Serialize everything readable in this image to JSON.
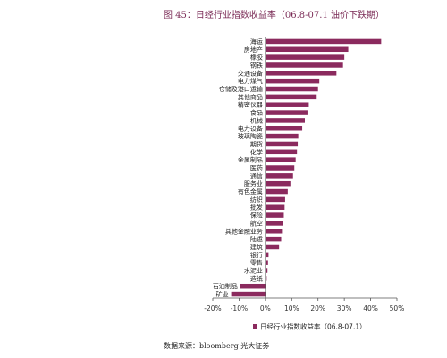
{
  "title": "图 45：日经行业指数收益率（06.8-07.1 油价下跌期）",
  "source": "数据来源：bloomberg 光大证券",
  "colors": {
    "bar": "#8b2a5e",
    "title": "#7a2a55"
  },
  "chart_data": {
    "type": "bar",
    "orientation": "horizontal",
    "title": "图 45：日经行业指数收益率（06.8-07.1 油价下跌期）",
    "xlim": [
      -20,
      50
    ],
    "xticks": [
      "-20%",
      "-10%",
      "0%",
      "10%",
      "20%",
      "30%",
      "40%",
      "50%"
    ],
    "grid": false,
    "legend_position": "bottom",
    "series": [
      {
        "name": "日经行业指数收益率（06.8-07.1）",
        "categories": [
          "海运",
          "房地产",
          "橡胶",
          "钢铁",
          "交通设备",
          "电力煤气",
          "仓储及港口运输",
          "其他商品",
          "精密仪器",
          "食品",
          "机械",
          "电力设备",
          "玻璃陶瓷",
          "期货",
          "化学",
          "金属制品",
          "医药",
          "通信",
          "服务业",
          "有色金属",
          "纺织",
          "批发",
          "保险",
          "航空",
          "其他金融业务",
          "陆运",
          "建筑",
          "银行",
          "零售",
          "水泥业",
          "造纸",
          "石油制品",
          "矿业"
        ],
        "values": [
          44,
          31.5,
          30,
          29.5,
          27,
          20.5,
          20,
          19.5,
          16.5,
          16,
          15,
          14,
          12.5,
          12.3,
          12,
          11.5,
          11,
          10.5,
          9.5,
          8.5,
          7.5,
          7.3,
          7,
          6.8,
          6.3,
          6,
          5.2,
          1.2,
          1,
          0.8,
          0.5,
          -9.5,
          -13
        ]
      }
    ]
  }
}
